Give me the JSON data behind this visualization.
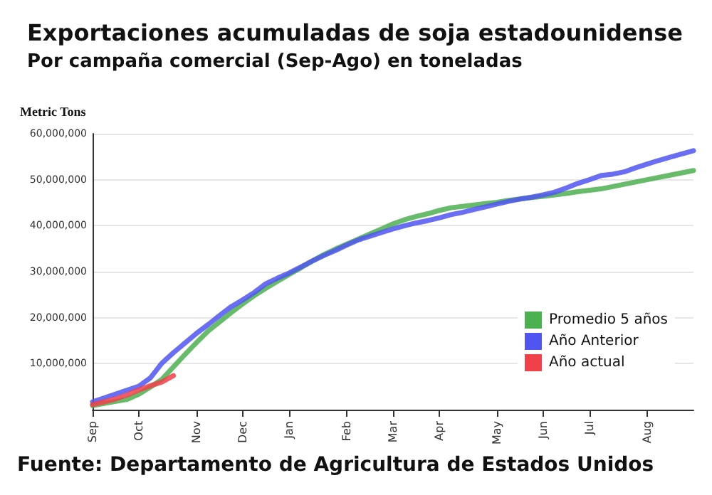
{
  "chart_data": {
    "type": "line",
    "title": "Exportaciones acumuladas de soja estadounidense",
    "subtitle": "Por campaña comercial (Sep-Ago) en toneladas",
    "ylabel": "Metric Tons",
    "annotations": [
      "Fuente: Departamento de Agricultura de Estados Unidos"
    ],
    "categories": [
      "Sep",
      null,
      null,
      null,
      "Oct",
      null,
      null,
      null,
      null,
      "Nov",
      null,
      null,
      null,
      "Dec",
      null,
      null,
      null,
      "Jan",
      null,
      null,
      null,
      null,
      "Feb",
      null,
      null,
      null,
      "Mar",
      null,
      null,
      null,
      "Apr",
      null,
      null,
      null,
      null,
      "May",
      null,
      null,
      null,
      "Jun",
      null,
      null,
      null,
      "Jul",
      null,
      null,
      null,
      null,
      "Aug",
      null,
      null,
      null,
      null
    ],
    "ylim": [
      0,
      60000000
    ],
    "yticks": [
      {
        "value": 10000000,
        "label": "10,000,000"
      },
      {
        "value": 20000000,
        "label": "20,000,000"
      },
      {
        "value": 30000000,
        "label": "30,000,000"
      },
      {
        "value": 40000000,
        "label": "40,000,000"
      },
      {
        "value": 50000000,
        "label": "50,000,000"
      },
      {
        "value": 60000000,
        "label": "60,000,000"
      }
    ],
    "grid": "y",
    "legend": "right",
    "marker": "none",
    "line_style": "solid",
    "series": [
      {
        "name": "Promedio 5 años",
        "color": "#4caf50",
        "values": [
          900000,
          1350000,
          1800000,
          2250000,
          3350000,
          4900000,
          6600000,
          9300000,
          12000000,
          14600000,
          17100000,
          19100000,
          21100000,
          23000000,
          24800000,
          26400000,
          27900000,
          29400000,
          30800000,
          32300000,
          33700000,
          34900000,
          36000000,
          37100000,
          38200000,
          39300000,
          40400000,
          41300000,
          42000000,
          42600000,
          43300000,
          43900000,
          44200000,
          44500000,
          44800000,
          45100000,
          45500000,
          45800000,
          46100000,
          46400000,
          46700000,
          47000000,
          47400000,
          47700000,
          48000000,
          48500000,
          49000000,
          49500000,
          50000000,
          50500000,
          51000000,
          51500000,
          52000000
        ]
      },
      {
        "name": "Año Anterior",
        "color": "#5055f0",
        "values": [
          1700000,
          2550000,
          3400000,
          4250000,
          5100000,
          6900000,
          10100000,
          12400000,
          14500000,
          16600000,
          18500000,
          20500000,
          22400000,
          23900000,
          25500000,
          27400000,
          28600000,
          29700000,
          31000000,
          32300000,
          33500000,
          34600000,
          35800000,
          36900000,
          37700000,
          38500000,
          39300000,
          40000000,
          40600000,
          41100000,
          41700000,
          42400000,
          42900000,
          43500000,
          44100000,
          44700000,
          45300000,
          45800000,
          46200000,
          46700000,
          47300000,
          48200000,
          49200000,
          50000000,
          50900000,
          51200000,
          51700000,
          52600000,
          53400000,
          54200000,
          54900000,
          55600000,
          56300000
        ]
      },
      {
        "name": "Año actual",
        "color": "#f0404a",
        "values": [
          1100000,
          1700000,
          2350000,
          3200000,
          4300000,
          5200000,
          6000000,
          7400000,
          null,
          null,
          null,
          null,
          null,
          null,
          null,
          null,
          null,
          null,
          null,
          null,
          null,
          null,
          null,
          null,
          null,
          null,
          null,
          null,
          null,
          null,
          null,
          null,
          null,
          null,
          null,
          null,
          null,
          null,
          null,
          null,
          null,
          null,
          null,
          null,
          null,
          null,
          null,
          null,
          null,
          null,
          null,
          null,
          null
        ]
      }
    ]
  }
}
